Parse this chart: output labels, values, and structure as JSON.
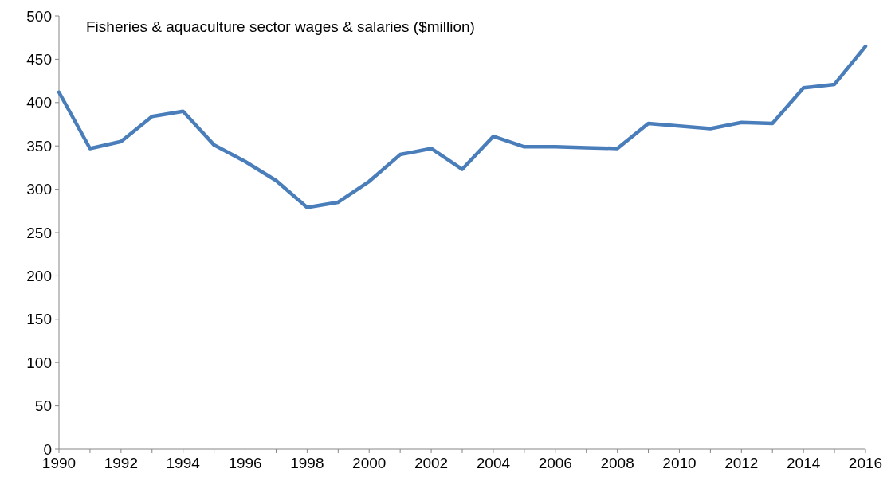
{
  "chart_data": {
    "type": "line",
    "title": "Fisheries & aquaculture sector wages & salaries ($million)",
    "x": [
      1990,
      1991,
      1992,
      1993,
      1994,
      1995,
      1996,
      1997,
      1998,
      1999,
      2000,
      2001,
      2002,
      2003,
      2004,
      2005,
      2006,
      2007,
      2008,
      2009,
      2010,
      2011,
      2012,
      2013,
      2014,
      2015,
      2016
    ],
    "series": [
      {
        "color": "#4a7ebb",
        "values": [
          412,
          347,
          355,
          384,
          390,
          351,
          332,
          310,
          279,
          285,
          309,
          340,
          347,
          323,
          361,
          349,
          349,
          348,
          347,
          376,
          373,
          370,
          377,
          376,
          417,
          421,
          465
        ]
      }
    ],
    "xlim": [
      1990,
      2016
    ],
    "xticks": [
      1990,
      1992,
      1994,
      1996,
      1998,
      2000,
      2002,
      2004,
      2006,
      2008,
      2010,
      2012,
      2014,
      2016
    ],
    "ylim": [
      0,
      500
    ],
    "yticks": [
      0,
      50,
      100,
      150,
      200,
      250,
      300,
      350,
      400,
      450,
      500
    ],
    "grid": false,
    "marker": "none",
    "line_style": "solid"
  }
}
